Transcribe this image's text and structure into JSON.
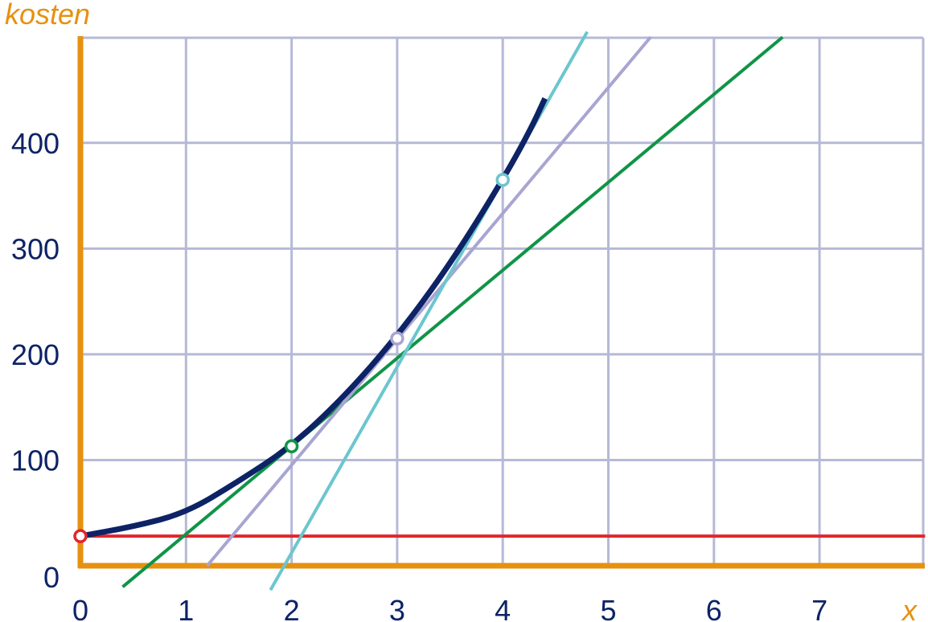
{
  "chart_data": {
    "type": "line",
    "title": "",
    "xlabel": "x",
    "ylabel": "kosten",
    "xlim": [
      0,
      8
    ],
    "ylim": [
      0,
      500
    ],
    "grid": true,
    "x_ticks": [
      0,
      1,
      2,
      3,
      4,
      5,
      6,
      7
    ],
    "y_ticks": [
      0,
      100,
      200,
      300,
      400
    ],
    "series": [
      {
        "kind": "curve",
        "color": "#0d2366",
        "x": [
          0,
          0.5,
          1,
          1.5,
          2,
          2.5,
          3,
          3.5,
          4,
          4.25,
          4.4
        ],
        "y": [
          28,
          37,
          50,
          80,
          113,
          160,
          217,
          285,
          365,
          410,
          442
        ]
      },
      {
        "kind": "line",
        "color": "#e1262d",
        "x": [
          0,
          8
        ],
        "y": [
          28,
          28
        ]
      },
      {
        "kind": "line",
        "color": "#109447",
        "x": [
          0.4,
          6.65
        ],
        "y": [
          -20,
          500
        ]
      },
      {
        "kind": "line",
        "color": "#a8a5d2",
        "x": [
          1.2,
          5.4
        ],
        "y": [
          0,
          500
        ]
      },
      {
        "kind": "line",
        "color": "#6bc6cf",
        "x": [
          1.8,
          4.8
        ],
        "y": [
          -23,
          505
        ]
      }
    ],
    "points": [
      {
        "x": 0,
        "y": 28,
        "color": "#e1262d"
      },
      {
        "x": 2,
        "y": 113,
        "color": "#109447"
      },
      {
        "x": 3,
        "y": 215,
        "color": "#a8a5d2"
      },
      {
        "x": 4,
        "y": 365,
        "color": "#6bc6cf"
      }
    ],
    "colors": {
      "axis": "#e6910f",
      "grid": "#b6b9d6",
      "tick_text": "#0d2366",
      "axis_title": "#e6910f"
    }
  }
}
